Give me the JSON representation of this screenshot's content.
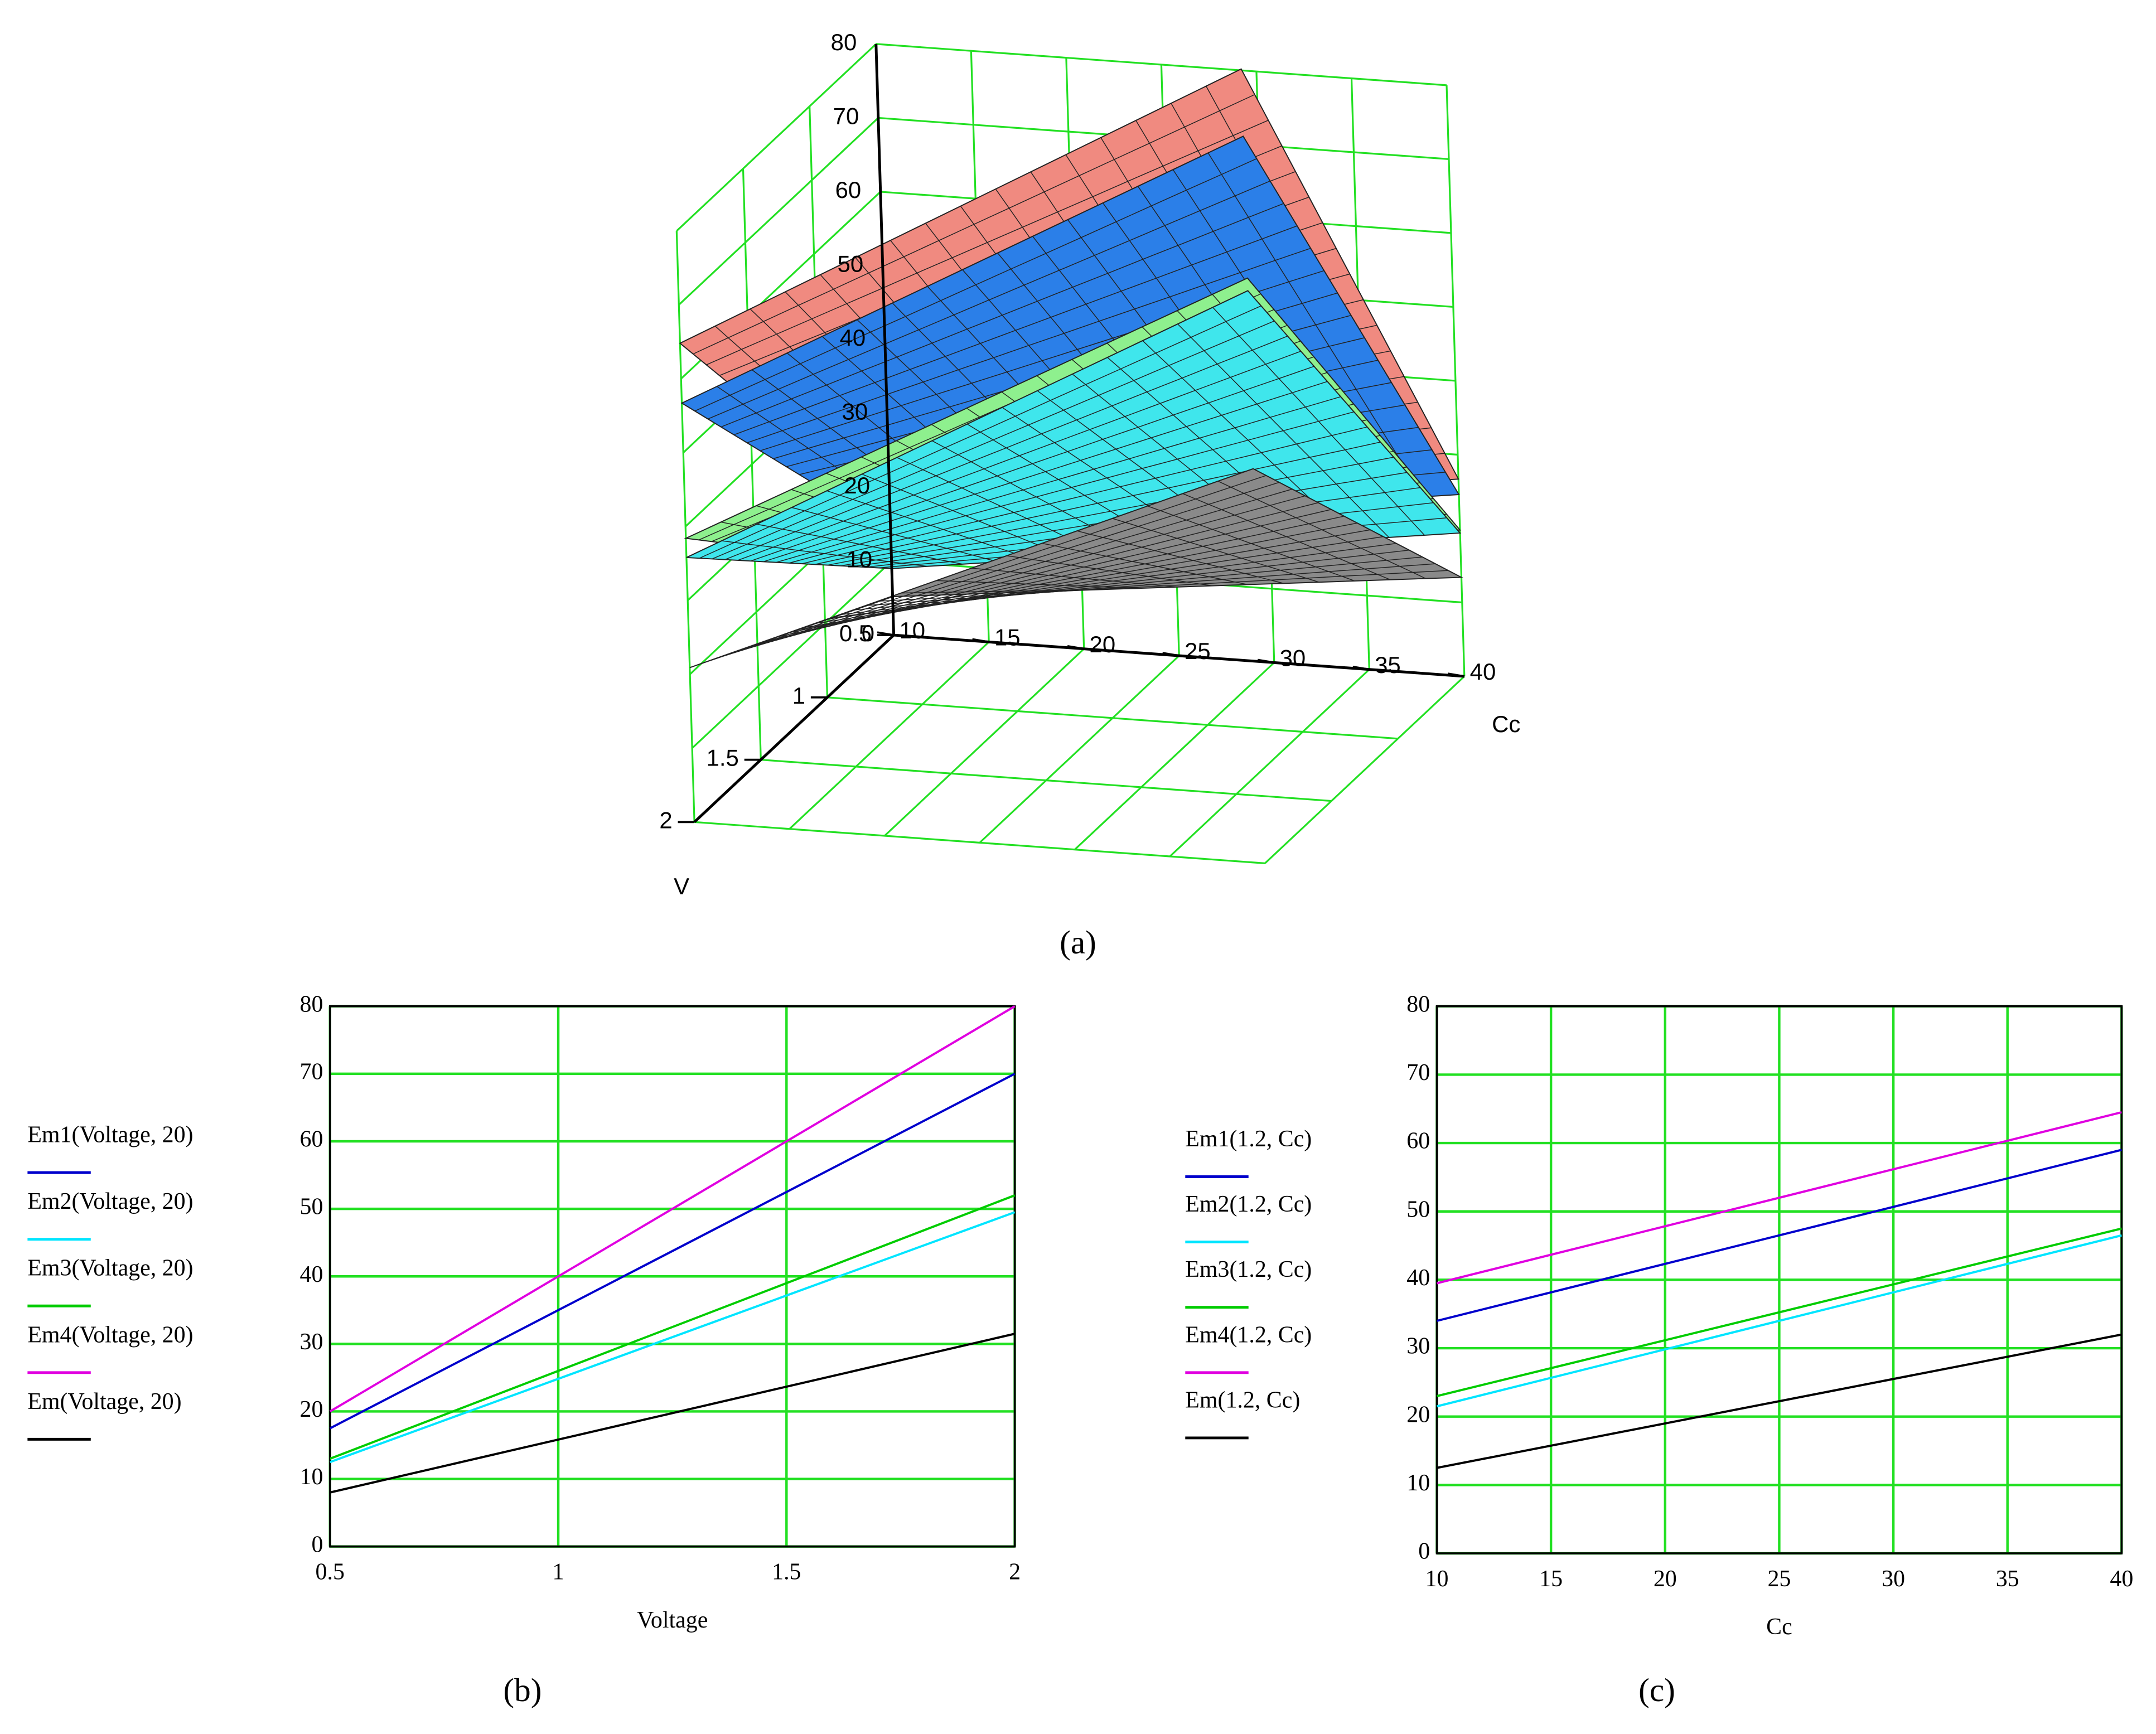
{
  "chart_data": [
    {
      "type": "surface3d",
      "caption": "(a)",
      "xlabel": "V",
      "ylabel": "Cc",
      "xlim": [
        0.5,
        2
      ],
      "xticks": [
        0.5,
        1,
        1.5,
        2
      ],
      "ylim": [
        10,
        40
      ],
      "yticks": [
        10,
        15,
        20,
        25,
        30,
        35,
        40
      ],
      "zlim": [
        0,
        80
      ],
      "zticks": [
        0,
        10,
        20,
        30,
        40,
        50,
        60,
        70,
        80
      ],
      "grid_color": "#22e022",
      "series": [
        {
          "color": "#f08a80",
          "values": [
            [
              16.2,
              26.7
            ],
            [
              64.8,
              107.5
            ]
          ]
        },
        {
          "color": "#2b7fe8",
          "values": [
            [
              14.2,
              24.6
            ],
            [
              56.7,
              98.4
            ]
          ]
        },
        {
          "color": "#8ef08e",
          "values": [
            [
              9.6,
              19.8
            ],
            [
              38.4,
              79.2
            ]
          ]
        },
        {
          "color": "#3fe6ec",
          "values": [
            [
              9.0,
              19.4
            ],
            [
              35.8,
              77.5
            ]
          ]
        },
        {
          "color": "#8a8a8a",
          "values": [
            [
              5.2,
              13.4
            ],
            [
              20.9,
              53.4
            ]
          ]
        }
      ]
    },
    {
      "type": "line",
      "caption": "(b)",
      "xlabel": "Voltage",
      "x": [
        0.5,
        2
      ],
      "xlim": [
        0.5,
        2
      ],
      "xticks": [
        0.5,
        1,
        1.5,
        2
      ],
      "ylim": [
        0,
        80
      ],
      "yticks": [
        0,
        10,
        20,
        30,
        40,
        50,
        60,
        70,
        80
      ],
      "grid": true,
      "grid_color": "#22e022",
      "series": [
        {
          "name": "Em1(Voltage, 20)",
          "color": "#0000cc",
          "values": [
            17.5,
            70
          ]
        },
        {
          "name": "Em2(Voltage, 20)",
          "color": "#00e5ff",
          "values": [
            12.5,
            49.5
          ]
        },
        {
          "name": "Em3(Voltage, 20)",
          "color": "#00cc00",
          "values": [
            13,
            52
          ]
        },
        {
          "name": "Em4(Voltage, 20)",
          "color": "#e000e0",
          "values": [
            20,
            80
          ]
        },
        {
          "name": "Em(Voltage, 20)",
          "color": "#000000",
          "values": [
            8,
            31.5
          ]
        }
      ]
    },
    {
      "type": "line",
      "caption": "(c)",
      "xlabel": "Cc",
      "x": [
        10,
        40
      ],
      "xlim": [
        10,
        40
      ],
      "xticks": [
        10,
        15,
        20,
        25,
        30,
        35,
        40
      ],
      "ylim": [
        0,
        80
      ],
      "yticks": [
        0,
        10,
        20,
        30,
        40,
        50,
        60,
        70,
        80
      ],
      "grid": true,
      "grid_color": "#22e022",
      "series": [
        {
          "name": "Em1(1.2, Cc)",
          "color": "#0000cc",
          "values": [
            34,
            59
          ]
        },
        {
          "name": "Em2(1.2, Cc)",
          "color": "#00e5ff",
          "values": [
            21.5,
            46.5
          ]
        },
        {
          "name": "Em3(1.2, Cc)",
          "color": "#00cc00",
          "values": [
            23,
            47.5
          ]
        },
        {
          "name": "Em4(1.2, Cc)",
          "color": "#e000e0",
          "values": [
            39.5,
            64.5
          ]
        },
        {
          "name": "Em(1.2, Cc)",
          "color": "#000000",
          "values": [
            12.5,
            32
          ]
        }
      ]
    }
  ]
}
